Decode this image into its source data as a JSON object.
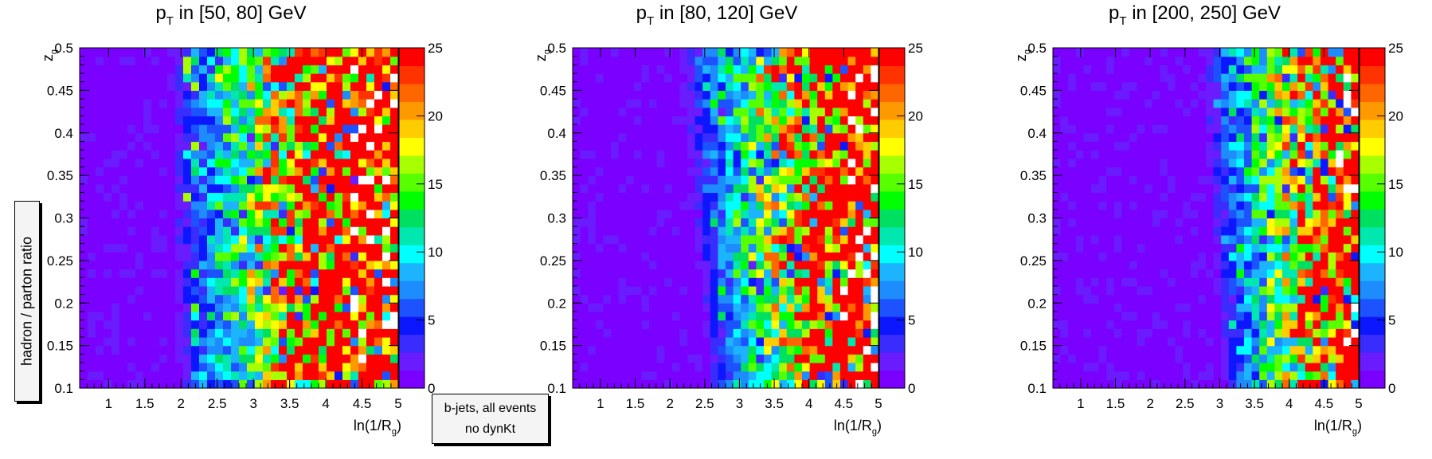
{
  "global_ylabel": "hadron / parton ratio",
  "legend": {
    "line1": "b-jets, all events",
    "line2": "no dynKt"
  },
  "palette": [
    "#7a00ff",
    "#6a1cff",
    "#3a2cff",
    "#0d17ff",
    "#1c52ff",
    "#1c8cff",
    "#1cb4ff",
    "#00ffff",
    "#00e8b0",
    "#00e060",
    "#00ff00",
    "#58ff00",
    "#a8ff00",
    "#ffff00",
    "#ffcc00",
    "#ff9900",
    "#ff6600",
    "#ff3300",
    "#ff0000"
  ],
  "chart_data": [
    {
      "type": "heatmap",
      "title_main": "p",
      "title_sub": "T",
      "title_rest": " in [50, 80] GeV",
      "xlabel_main": "ln(1/R",
      "xlabel_sub": "g",
      "xlabel_end": ")",
      "ylabel_main": "z",
      "ylabel_sub": "g",
      "xlim": [
        0.6,
        5.0
      ],
      "ylim": [
        0.1,
        0.5
      ],
      "zlim": [
        0,
        25
      ],
      "xticks": [
        "1",
        "1.5",
        "2",
        "2.5",
        "3",
        "3.5",
        "4",
        "4.5",
        "5"
      ],
      "yticks": [
        "0.1",
        "0.15",
        "0.2",
        "0.25",
        "0.3",
        "0.35",
        "0.4",
        "0.45",
        "0.5"
      ],
      "zticks": [
        "0",
        "5",
        "10",
        "15",
        "20",
        "25"
      ],
      "nx": 40,
      "ny": 40,
      "transition_x": [
        1.9,
        1.75
      ],
      "saturation_x": 3.6,
      "missing_start_x": 4.3
    },
    {
      "type": "heatmap",
      "title_main": "p",
      "title_sub": "T",
      "title_rest": " in [80, 120] GeV",
      "xlabel_main": "ln(1/R",
      "xlabel_sub": "g",
      "xlabel_end": ")",
      "ylabel_main": "z",
      "ylabel_sub": "g",
      "xlim": [
        0.6,
        5.0
      ],
      "ylim": [
        0.1,
        0.5
      ],
      "zlim": [
        0,
        25
      ],
      "xticks": [
        "1",
        "1.5",
        "2",
        "2.5",
        "3",
        "3.5",
        "4",
        "4.5",
        "5"
      ],
      "yticks": [
        "0.1",
        "0.15",
        "0.2",
        "0.25",
        "0.3",
        "0.35",
        "0.4",
        "0.45",
        "0.5"
      ],
      "zticks": [
        "0",
        "5",
        "10",
        "15",
        "20",
        "25"
      ],
      "nx": 40,
      "ny": 40,
      "transition_x": [
        2.5,
        2.0
      ],
      "saturation_x": 4.0,
      "missing_start_x": 4.5
    },
    {
      "type": "heatmap",
      "title_main": "p",
      "title_sub": "T",
      "title_rest": " in [200, 250] GeV",
      "xlabel_main": "ln(1/R",
      "xlabel_sub": "g",
      "xlabel_end": ")",
      "ylabel_main": "z",
      "ylabel_sub": "g",
      "xlim": [
        0.6,
        5.0
      ],
      "ylim": [
        0.1,
        0.5
      ],
      "zlim": [
        0,
        25
      ],
      "xticks": [
        "1",
        "1.5",
        "2",
        "2.5",
        "3",
        "3.5",
        "4",
        "4.5",
        "5"
      ],
      "yticks": [
        "0.1",
        "0.15",
        "0.2",
        "0.25",
        "0.3",
        "0.35",
        "0.4",
        "0.45",
        "0.5"
      ],
      "zticks": [
        "0",
        "5",
        "10",
        "15",
        "20",
        "25"
      ],
      "nx": 40,
      "ny": 40,
      "transition_x": [
        3.0,
        2.6
      ],
      "saturation_x": 4.4,
      "missing_start_x": 4.7
    }
  ]
}
